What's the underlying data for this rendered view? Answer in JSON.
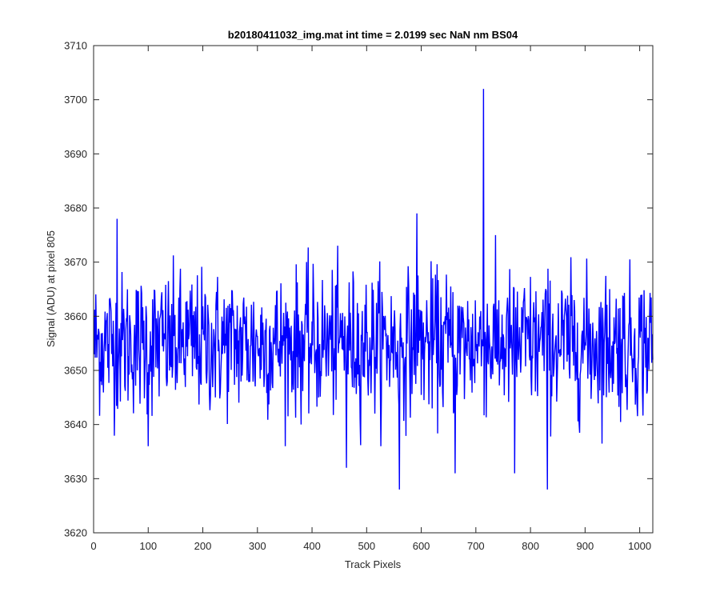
{
  "chart_data": {
    "type": "line",
    "title": "b20180411032_img.mat int time = 2.0199 sec  NaN nm BS04",
    "xlabel": "Track Pixels",
    "ylabel": "Signal (ADU) at pixel 805",
    "xlim": [
      0,
      1024
    ],
    "ylim": [
      3620,
      3710
    ],
    "xticks": [
      0,
      100,
      200,
      300,
      400,
      500,
      600,
      700,
      800,
      900,
      1000
    ],
    "yticks": [
      3620,
      3630,
      3640,
      3650,
      3660,
      3670,
      3680,
      3690,
      3700,
      3710
    ],
    "grid": false,
    "line_color": "#0000ff",
    "series": [
      {
        "n_points": 1024,
        "mean": 3655,
        "noise_std": 6.5,
        "x_start": 1,
        "peaks": [
          {
            "x": 43,
            "y": 3678
          },
          {
            "x": 592,
            "y": 3679
          },
          {
            "x": 714,
            "y": 3702
          }
        ],
        "troughs": [
          {
            "x": 100,
            "y": 3636
          },
          {
            "x": 463,
            "y": 3632
          },
          {
            "x": 560,
            "y": 3628
          },
          {
            "x": 662,
            "y": 3631
          },
          {
            "x": 771,
            "y": 3631
          },
          {
            "x": 831,
            "y": 3628
          }
        ]
      }
    ]
  }
}
